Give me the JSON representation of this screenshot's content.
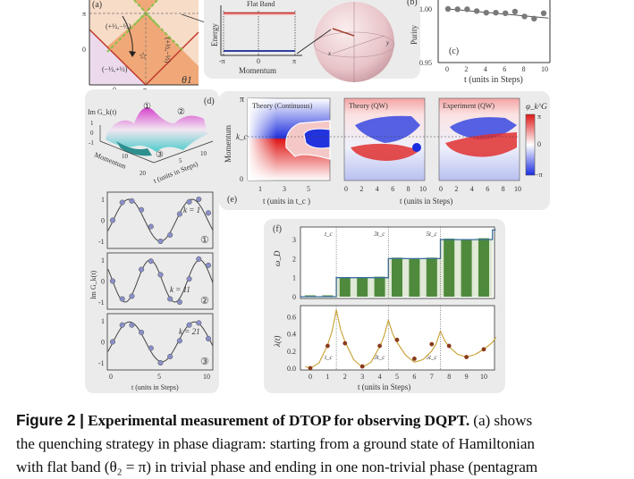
{
  "panel_a": {
    "label": "(a)",
    "x_axis_label": "θ1",
    "x_ticks": [
      "0",
      "π"
    ],
    "y_ticks": [
      "π",
      "0"
    ],
    "region_labels": [
      "(+½,−½)",
      "(−½,+½)",
      "(+½,−½)"
    ],
    "colors": {
      "trivial": "#f7dcc8",
      "nontrivial": "#f0a878",
      "other": "#ecdaec",
      "boundary": "#c0392b",
      "dashed": "#8cc04a"
    }
  },
  "panel_b": {
    "label": "(b)",
    "title": "Flat Band",
    "x_axis_label": "Momentum",
    "y_axis_label": "Energy",
    "x_ticks": [
      "-π",
      "0",
      "π"
    ],
    "sphere_axes": [
      "x",
      "y"
    ]
  },
  "panel_c": {
    "label": "(c)",
    "y_axis_label": "Purity",
    "x_axis_label": "t (units in Steps)",
    "y_ticks": [
      "1.00",
      "0.95"
    ],
    "x_ticks": [
      "0",
      "2",
      "4",
      "6",
      "8",
      "10"
    ]
  },
  "panel_d": {
    "label": "(d)",
    "surface_z_label": "Im G_k(t)",
    "surface_z_ticks": [
      "1",
      "0",
      "-1"
    ],
    "surface_x_label": "Momentum",
    "surface_x_ticks": [
      "10",
      "20"
    ],
    "surface_y_label": "t (units in Steps)",
    "surface_y_ticks": [
      "5",
      "10"
    ],
    "markers": [
      "①",
      "②",
      "③"
    ],
    "y_axis_label": "Im G_k(t)",
    "x_axis_label": "t (units in Steps)",
    "x_ticks": [
      "0",
      "5",
      "10"
    ],
    "y_ticks": [
      "1",
      "0",
      "-1"
    ]
  },
  "panel_e": {
    "label": "(e)",
    "y_axis_label": "Momentum",
    "y_ticks": [
      "π",
      "k_c",
      "0"
    ],
    "subplots": [
      {
        "title": "Theory (Continuous)",
        "x_ticks": [
          "1",
          "3",
          "5"
        ]
      },
      {
        "title": "Theory (QW)",
        "x_ticks": [
          "0",
          "2",
          "4",
          "6",
          "8",
          "10"
        ]
      },
      {
        "title": "Experiment (QW)",
        "x_ticks": [
          "0",
          "2",
          "4",
          "6",
          "8",
          "10"
        ]
      }
    ],
    "x_label_left": "t (units in t_c )",
    "x_label_right": "t (units in Steps)",
    "colorbar_label": "φ_k^G",
    "colorbar_ticks": [
      "π",
      "0",
      "−π"
    ],
    "colors": {
      "positive": "#e01818",
      "zero": "#ffffff",
      "negative": "#1a2de0"
    }
  },
  "panel_f": {
    "label": "(f)",
    "top_y_label": "ω_D",
    "bottom_y_label": "λ(t)",
    "x_axis_label": "t (units in Steps)",
    "critical_labels": [
      "t_c",
      "3t_c",
      "5t_c"
    ],
    "top_y_ticks": [
      "3",
      "2",
      "1",
      "0"
    ],
    "bottom_y_ticks": [
      "0.6",
      "0.4",
      "0.2",
      "0.0"
    ],
    "x_ticks": [
      "0",
      "1",
      "2",
      "3",
      "4",
      "5",
      "6",
      "7",
      "8",
      "9",
      "10"
    ]
  },
  "chart_data": [
    {
      "type": "scatter",
      "panel": "c",
      "xlabel": "t (units in Steps)",
      "ylabel": "Purity",
      "xlim": [
        -0.5,
        10.5
      ],
      "ylim": [
        0.95,
        1.005
      ],
      "x": [
        0,
        1,
        2,
        3,
        4,
        5,
        6,
        7,
        8,
        9,
        10
      ],
      "y": [
        1.0,
        0.9997,
        0.9997,
        0.998,
        0.9965,
        0.9965,
        0.996,
        0.9975,
        0.993,
        0.991,
        0.996
      ],
      "fit_line": {
        "x": [
          0,
          10.5
        ],
        "y": [
          1.0,
          0.9915
        ]
      },
      "colors": {
        "points": "#7a7a7a",
        "line": "#555555"
      }
    },
    {
      "type": "line",
      "panel": "d",
      "xlabel": "t (units in Steps)",
      "ylabel": "Im G_k(t)",
      "xlim": [
        -0.3,
        10.3
      ],
      "ylim": [
        -1.15,
        1.15
      ],
      "series": [
        {
          "name": "k = 1",
          "marker": "①",
          "x": [
            0,
            1,
            2,
            3,
            4,
            5,
            6,
            7,
            8,
            9,
            10
          ],
          "y": [
            0,
            0.85,
            0.92,
            0.5,
            -0.3,
            -1.0,
            -0.7,
            0.3,
            0.88,
            1.0,
            0.35
          ]
        },
        {
          "name": "k = 11",
          "marker": "②",
          "x": [
            0,
            1,
            2,
            3,
            4,
            5,
            6,
            7,
            8,
            9,
            10
          ],
          "y": [
            0,
            -0.85,
            -0.72,
            0.55,
            0.95,
            0.3,
            -0.85,
            -1.0,
            0.1,
            1.05,
            0.75
          ]
        },
        {
          "name": "k = 21",
          "marker": "③",
          "x": [
            0,
            1,
            2,
            3,
            4,
            5,
            6,
            7,
            8,
            9,
            10
          ],
          "y": [
            0,
            0.8,
            0.8,
            0.45,
            -0.3,
            -1.0,
            -0.7,
            0.05,
            0.8,
            0.9,
            0.15
          ]
        }
      ],
      "colors": {
        "points": "#8a8fc8",
        "line": "#444444"
      }
    },
    {
      "type": "bar",
      "panel": "f-top",
      "ylabel": "ω_D",
      "xlim": [
        -0.6,
        10.7
      ],
      "ylim": [
        -0.1,
        3.5
      ],
      "categories": [
        "0",
        "1",
        "2",
        "3",
        "4",
        "5",
        "6",
        "7",
        "8",
        "9",
        "10"
      ],
      "values": [
        0,
        0.03,
        1.02,
        1.0,
        1.05,
        2.05,
        2.02,
        2.05,
        3.05,
        3.02,
        3.07
      ],
      "theory_steps": {
        "x": [
          -0.6,
          1.5,
          1.5,
          4.5,
          4.5,
          7.5,
          7.5,
          10.5,
          10.5,
          10.7
        ],
        "y": [
          0,
          0,
          1,
          1,
          2,
          2,
          3,
          3,
          3.5,
          3.5
        ]
      },
      "critical_times": [
        1.5,
        4.5,
        7.5
      ],
      "colors": {
        "bars": "#4f8a3c",
        "stripes": "#dfe9d6",
        "line": "#3a6f9e"
      }
    },
    {
      "type": "line",
      "panel": "f-bottom",
      "ylabel": "λ(t)",
      "xlabel": "t (units in Steps)",
      "xlim": [
        -0.6,
        10.7
      ],
      "ylim": [
        -0.02,
        0.76
      ],
      "experiment": {
        "x": [
          0,
          1,
          2,
          3,
          4,
          5,
          6,
          7,
          8,
          9,
          10
        ],
        "y": [
          0,
          0.26,
          0.29,
          0.02,
          0.26,
          0.33,
          0.11,
          0.28,
          0.26,
          0.13,
          0.22
        ]
      },
      "theory": {
        "x": [
          -0.3,
          0,
          0.5,
          1,
          1.25,
          1.5,
          1.75,
          2,
          2.5,
          3,
          3.5,
          4,
          4.25,
          4.5,
          4.75,
          5,
          5.5,
          6,
          6.5,
          7,
          7.25,
          7.5,
          7.75,
          8,
          8.5,
          9,
          9.5,
          10,
          10.5,
          10.7
        ],
        "y": [
          0.02,
          0,
          0.06,
          0.27,
          0.43,
          0.68,
          0.45,
          0.31,
          0.1,
          0.01,
          0.07,
          0.25,
          0.37,
          0.56,
          0.4,
          0.3,
          0.15,
          0.07,
          0.1,
          0.2,
          0.28,
          0.43,
          0.32,
          0.25,
          0.16,
          0.13,
          0.16,
          0.22,
          0.3,
          0.36
        ]
      },
      "critical_times": [
        1.5,
        4.5,
        7.5
      ],
      "colors": {
        "points": "#8a3a1c",
        "line": "#c8a030"
      }
    }
  ],
  "caption": {
    "figure_label": "Figure 2 |",
    "title": "Experimental measurement of DTOP for observing DQPT.",
    "text_line1": " (a) shows",
    "text_line2": "the quenching strategy in phase diagram: starting from a ground state of Hamiltonian",
    "text_line3": "with flat band (θ₂ = π) in trivial phase and ending in one non-trivial phase (pentagram"
  }
}
